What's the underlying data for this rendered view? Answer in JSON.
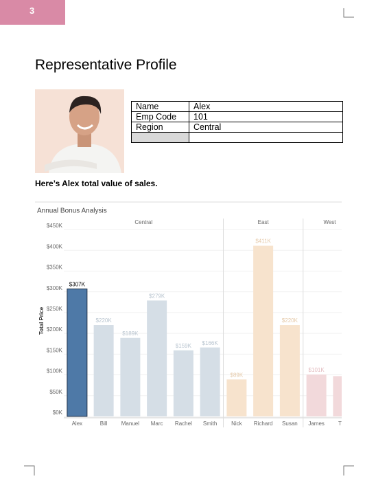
{
  "page_number": "3",
  "title": "Representative Profile",
  "profile": {
    "rows": [
      [
        "Name",
        "Alex"
      ],
      [
        "Emp Code",
        "101"
      ],
      [
        "Region",
        "Central"
      ]
    ]
  },
  "caption": "Here’s Alex total value of sales.",
  "chart_data": {
    "type": "bar",
    "title": "Annual Bonus Analysis",
    "y_label": "Total Price",
    "ylim": [
      0,
      450
    ],
    "yticks": [
      {
        "value": 0,
        "label": "$0K"
      },
      {
        "value": 50,
        "label": "$50K"
      },
      {
        "value": 100,
        "label": "$100K"
      },
      {
        "value": 150,
        "label": "$150K"
      },
      {
        "value": 200,
        "label": "$200K"
      },
      {
        "value": 250,
        "label": "$250K"
      },
      {
        "value": 300,
        "label": "$300K"
      },
      {
        "value": 350,
        "label": "$350K"
      },
      {
        "value": 400,
        "label": "$400K"
      },
      {
        "value": 450,
        "label": "$450K"
      }
    ],
    "grid": true,
    "groups": [
      {
        "name": "Central",
        "categories": [
          "Alex",
          "Bill",
          "Manuel",
          "Marc",
          "Rachel",
          "Smith"
        ],
        "values": [
          307,
          220,
          189,
          279,
          159,
          166
        ],
        "value_labels": [
          "$307K",
          "$220K",
          "$189K",
          "$279K",
          "$159K",
          "$166K"
        ],
        "colors": [
          "#4e79a7",
          "#d5dee6",
          "#d5dee6",
          "#d5dee6",
          "#d5dee6",
          "#d5dee6"
        ],
        "label_colors": [
          "#000000",
          "#b8c4cf",
          "#b8c4cf",
          "#b8c4cf",
          "#b8c4cf",
          "#b8c4cf"
        ]
      },
      {
        "name": "East",
        "categories": [
          "Nick",
          "Richard",
          "Susan"
        ],
        "values": [
          89,
          411,
          220
        ],
        "value_labels": [
          "$89K",
          "$411K",
          "$220K"
        ],
        "colors": [
          "#f7e3cd",
          "#f7e3cd",
          "#f7e3cd"
        ],
        "label_colors": [
          "#e5c9a8",
          "#e5c9a8",
          "#e5c9a8"
        ]
      },
      {
        "name": "West",
        "categories": [
          "James",
          "Tho"
        ],
        "values": [
          101,
          97
        ],
        "value_labels": [
          "$101K",
          null
        ],
        "colors": [
          "#f2d9db",
          "#f2d9db"
        ],
        "label_colors": [
          "#e2b9bd",
          "#e2b9bd"
        ]
      }
    ]
  }
}
